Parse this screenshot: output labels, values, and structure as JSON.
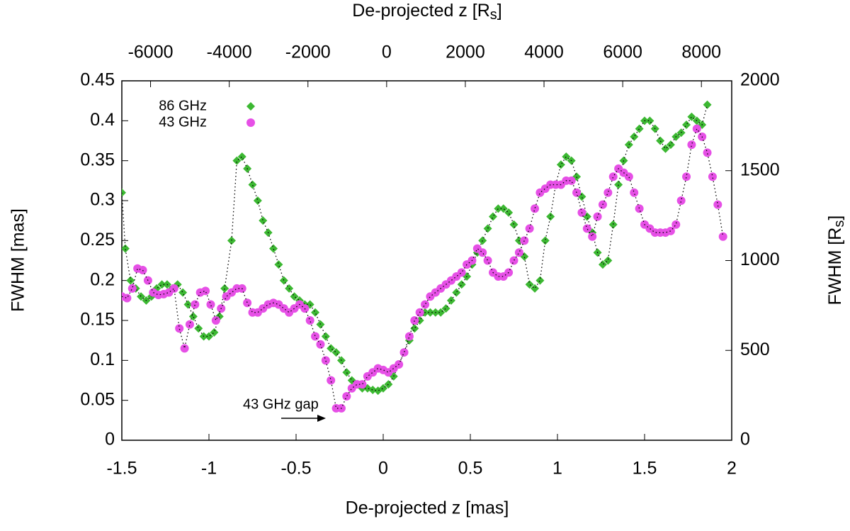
{
  "chart_data": {
    "type": "scatter",
    "xlabel": "De-projected z [mas]",
    "ylabel": "FWHM [mas]",
    "x2label": [
      "De-projected z [R",
      "s",
      "]"
    ],
    "y2label": [
      "FWHM [R",
      "s",
      "]"
    ],
    "annotation": "43 GHz gap",
    "xlim": [
      -1.5,
      2
    ],
    "xticks": [
      -1.5,
      -1,
      -0.5,
      0,
      0.5,
      1,
      1.5,
      2
    ],
    "ylim": [
      0,
      0.45
    ],
    "yticks": [
      0,
      0.05,
      0.1,
      0.15,
      0.2,
      0.25,
      0.3,
      0.35,
      0.4,
      0.45
    ],
    "x2lim": [
      -6730,
      8770
    ],
    "x2ticks": [
      -6000,
      -4000,
      -2000,
      0,
      2000,
      4000,
      6000,
      8000
    ],
    "y2lim": [
      0,
      2000
    ],
    "y2ticks": [
      0,
      500,
      1000,
      1500,
      2000
    ],
    "legend": "upper left",
    "series": [
      {
        "name": "86 GHz",
        "color": "#3cb832",
        "marker": "diamond",
        "x": [
          -1.5,
          -1.48,
          -1.45,
          -1.42,
          -1.39,
          -1.36,
          -1.33,
          -1.3,
          -1.27,
          -1.24,
          -1.21,
          -1.18,
          -1.15,
          -1.12,
          -1.09,
          -1.06,
          -1.03,
          -1.0,
          -0.97,
          -0.94,
          -0.91,
          -0.87,
          -0.84,
          -0.81,
          -0.78,
          -0.75,
          -0.72,
          -0.69,
          -0.66,
          -0.63,
          -0.6,
          -0.57,
          -0.54,
          -0.51,
          -0.48,
          -0.45,
          -0.42,
          -0.39,
          -0.36,
          -0.33,
          -0.3,
          -0.27,
          -0.24,
          -0.21,
          -0.18,
          -0.15,
          -0.12,
          -0.09,
          -0.06,
          -0.03,
          0,
          0.03,
          0.06,
          0.09,
          0.12,
          0.15,
          0.18,
          0.21,
          0.24,
          0.27,
          0.3,
          0.33,
          0.36,
          0.39,
          0.42,
          0.45,
          0.48,
          0.51,
          0.54,
          0.57,
          0.6,
          0.63,
          0.66,
          0.69,
          0.72,
          0.75,
          0.78,
          0.81,
          0.84,
          0.87,
          0.9,
          0.93,
          0.96,
          0.99,
          1.02,
          1.05,
          1.08,
          1.11,
          1.14,
          1.17,
          1.2,
          1.23,
          1.26,
          1.29,
          1.32,
          1.35,
          1.38,
          1.41,
          1.44,
          1.47,
          1.5,
          1.53,
          1.56,
          1.59,
          1.62,
          1.65,
          1.68,
          1.71,
          1.74,
          1.77,
          1.8,
          1.83,
          1.86
        ],
        "values": [
          0.31,
          0.24,
          0.2,
          0.19,
          0.18,
          0.175,
          0.18,
          0.19,
          0.195,
          0.195,
          0.19,
          0.195,
          0.185,
          0.17,
          0.155,
          0.14,
          0.13,
          0.13,
          0.135,
          0.155,
          0.19,
          0.25,
          0.35,
          0.355,
          0.34,
          0.32,
          0.3,
          0.275,
          0.26,
          0.24,
          0.22,
          0.2,
          0.19,
          0.18,
          0.175,
          0.17,
          0.17,
          0.16,
          0.145,
          0.13,
          0.115,
          0.11,
          0.1,
          0.085,
          0.075,
          0.07,
          0.065,
          0.065,
          0.063,
          0.062,
          0.065,
          0.07,
          0.08,
          0.095,
          0.11,
          0.125,
          0.14,
          0.15,
          0.16,
          0.16,
          0.16,
          0.16,
          0.165,
          0.175,
          0.185,
          0.195,
          0.205,
          0.22,
          0.235,
          0.25,
          0.265,
          0.28,
          0.29,
          0.29,
          0.285,
          0.27,
          0.25,
          0.23,
          0.195,
          0.19,
          0.2,
          0.25,
          0.28,
          0.32,
          0.345,
          0.355,
          0.35,
          0.33,
          0.305,
          0.28,
          0.26,
          0.235,
          0.22,
          0.225,
          0.27,
          0.32,
          0.35,
          0.37,
          0.38,
          0.39,
          0.4,
          0.4,
          0.39,
          0.375,
          0.365,
          0.37,
          0.38,
          0.385,
          0.395,
          0.405,
          0.4,
          0.395,
          0.42
        ]
      },
      {
        "name": "43 GHz",
        "color": "#e650e6",
        "marker": "circle",
        "x": [
          -1.5,
          -1.47,
          -1.44,
          -1.41,
          -1.38,
          -1.35,
          -1.32,
          -1.29,
          -1.26,
          -1.23,
          -1.2,
          -1.17,
          -1.14,
          -1.11,
          -1.08,
          -1.05,
          -1.02,
          -0.99,
          -0.96,
          -0.93,
          -0.9,
          -0.87,
          -0.84,
          -0.81,
          -0.78,
          -0.75,
          -0.72,
          -0.69,
          -0.66,
          -0.63,
          -0.6,
          -0.57,
          -0.54,
          -0.51,
          -0.48,
          -0.45,
          -0.42,
          -0.39,
          -0.36,
          -0.33,
          -0.3,
          -0.27,
          -0.24,
          -0.21,
          -0.18,
          -0.15,
          -0.12,
          -0.09,
          -0.06,
          -0.03,
          0,
          0.03,
          0.06,
          0.09,
          0.12,
          0.15,
          0.18,
          0.21,
          0.24,
          0.27,
          0.3,
          0.33,
          0.36,
          0.39,
          0.42,
          0.45,
          0.48,
          0.51,
          0.54,
          0.57,
          0.6,
          0.63,
          0.66,
          0.69,
          0.72,
          0.75,
          0.78,
          0.81,
          0.84,
          0.87,
          0.9,
          0.93,
          0.96,
          0.99,
          1.02,
          1.05,
          1.08,
          1.11,
          1.14,
          1.17,
          1.2,
          1.23,
          1.26,
          1.29,
          1.32,
          1.35,
          1.38,
          1.41,
          1.44,
          1.47,
          1.5,
          1.53,
          1.56,
          1.59,
          1.62,
          1.65,
          1.68,
          1.71,
          1.74,
          1.77,
          1.8,
          1.83,
          1.86,
          1.89,
          1.92,
          1.95
        ],
        "values": [
          0.18,
          0.178,
          0.19,
          0.215,
          0.213,
          0.2,
          0.185,
          0.182,
          0.183,
          0.185,
          0.19,
          0.14,
          0.115,
          0.145,
          0.17,
          0.185,
          0.187,
          0.17,
          0.15,
          0.165,
          0.18,
          0.185,
          0.19,
          0.19,
          0.172,
          0.16,
          0.16,
          0.165,
          0.17,
          0.172,
          0.17,
          0.165,
          0.16,
          0.165,
          0.17,
          0.165,
          0.15,
          0.13,
          0.12,
          0.1,
          0.075,
          0.04,
          0.04,
          0.055,
          0.065,
          0.07,
          0.07,
          0.08,
          0.085,
          0.09,
          0.088,
          0.085,
          0.09,
          0.095,
          0.11,
          0.13,
          0.15,
          0.16,
          0.17,
          0.18,
          0.185,
          0.19,
          0.195,
          0.2,
          0.205,
          0.21,
          0.22,
          0.225,
          0.24,
          0.235,
          0.225,
          0.21,
          0.205,
          0.205,
          0.21,
          0.225,
          0.235,
          0.25,
          0.265,
          0.29,
          0.31,
          0.315,
          0.32,
          0.32,
          0.32,
          0.325,
          0.325,
          0.31,
          0.285,
          0.265,
          0.255,
          0.28,
          0.295,
          0.31,
          0.33,
          0.34,
          0.335,
          0.33,
          0.31,
          0.29,
          0.27,
          0.265,
          0.26,
          0.26,
          0.26,
          0.262,
          0.27,
          0.3,
          0.33,
          0.37,
          0.39,
          0.38,
          0.36,
          0.33,
          0.295,
          0.255
        ]
      }
    ]
  }
}
